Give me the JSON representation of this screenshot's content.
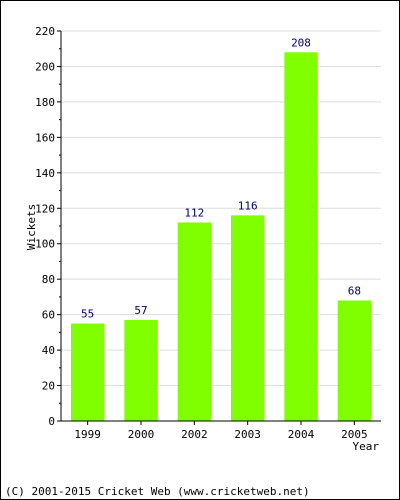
{
  "chart_data": {
    "type": "bar",
    "categories": [
      "1999",
      "2000",
      "2002",
      "2003",
      "2004",
      "2005"
    ],
    "values": [
      55,
      57,
      112,
      116,
      208,
      68
    ],
    "title": "",
    "xlabel": "Year",
    "ylabel": "Wickets",
    "ylim": [
      0,
      220
    ],
    "y_ticks": [
      0,
      20,
      40,
      60,
      80,
      100,
      120,
      140,
      160,
      180,
      200,
      220
    ],
    "grid": true,
    "legend": "none",
    "value_labels": [
      "55",
      "57",
      "112",
      "116",
      "208",
      "68"
    ],
    "colors": {
      "bar": "#80ff00",
      "value_label": "#000066",
      "grid": "#dddddd",
      "axis": "#000000"
    }
  },
  "footer": {
    "copyright": "(C) 2001-2015 Cricket Web (www.cricketweb.net)"
  }
}
